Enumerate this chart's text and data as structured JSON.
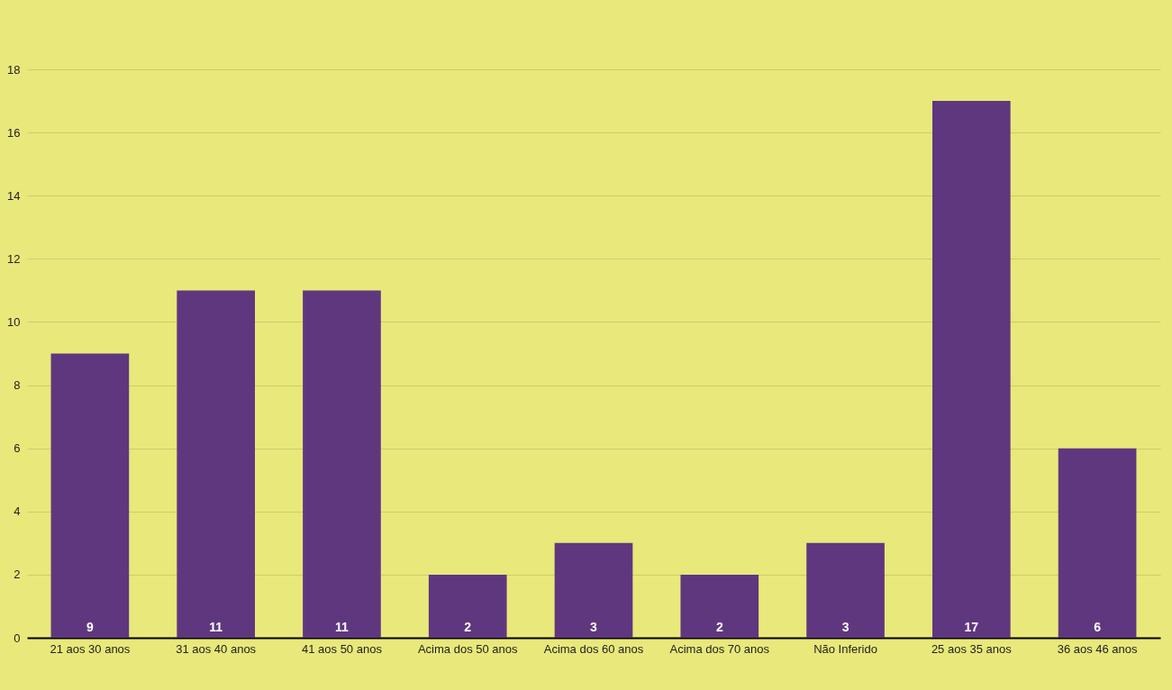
{
  "chart_data": {
    "type": "bar",
    "categories": [
      "21 aos 30 anos",
      "31 aos 40 anos",
      "41 aos 50 anos",
      "Acima dos 50 anos",
      "Acima dos 60 anos",
      "Acima dos 70 anos",
      "Não Inferido",
      "25 aos 35 anos",
      "36 aos 46 anos"
    ],
    "values": [
      9,
      11,
      11,
      2,
      3,
      2,
      3,
      17,
      6
    ],
    "color": "#5f377f",
    "ylim": [
      0,
      18
    ],
    "yticks": [
      0,
      2,
      4,
      6,
      8,
      10,
      12,
      14,
      16,
      18
    ],
    "grid": "y",
    "data_labels": true
  }
}
